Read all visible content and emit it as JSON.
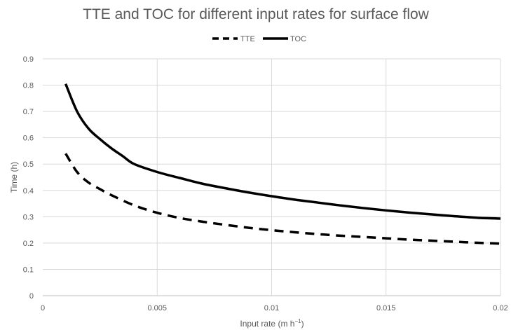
{
  "chart_data": {
    "type": "line",
    "title": "TTE and TOC for different input rates for surface flow",
    "xlabel": "Input rate (m h",
    "xlabel_sup": "−1",
    "xlabel_close": ")",
    "ylabel": "Time (h)",
    "xlim": [
      0,
      0.02
    ],
    "ylim": [
      0,
      0.9
    ],
    "x_ticks": [
      "0",
      "0.005",
      "0.01",
      "0.015",
      "0.02"
    ],
    "y_ticks": [
      "0",
      "0.1",
      "0.2",
      "0.3",
      "0.4",
      "0.5",
      "0.6",
      "0.7",
      "0.8",
      "0.9"
    ],
    "grid": true,
    "legend_position": "top",
    "series": [
      {
        "name": "TTE",
        "style": "dashed",
        "color": "#000000",
        "x": [
          0.001,
          0.0015,
          0.002,
          0.0025,
          0.003,
          0.004,
          0.005,
          0.006,
          0.007,
          0.008,
          0.009,
          0.01,
          0.011,
          0.012,
          0.013,
          0.014,
          0.015,
          0.016,
          0.017,
          0.018,
          0.019,
          0.02
        ],
        "values": [
          0.54,
          0.47,
          0.43,
          0.405,
          0.382,
          0.343,
          0.315,
          0.295,
          0.281,
          0.269,
          0.258,
          0.249,
          0.241,
          0.234,
          0.228,
          0.223,
          0.218,
          0.213,
          0.209,
          0.205,
          0.201,
          0.198
        ]
      },
      {
        "name": "TOC",
        "style": "solid",
        "color": "#000000",
        "x": [
          0.001,
          0.0015,
          0.002,
          0.0025,
          0.003,
          0.0035,
          0.004,
          0.005,
          0.006,
          0.007,
          0.008,
          0.009,
          0.01,
          0.011,
          0.012,
          0.013,
          0.014,
          0.015,
          0.016,
          0.017,
          0.018,
          0.019,
          0.02
        ],
        "values": [
          0.805,
          0.7,
          0.635,
          0.595,
          0.56,
          0.53,
          0.5,
          0.47,
          0.447,
          0.425,
          0.408,
          0.392,
          0.378,
          0.365,
          0.354,
          0.343,
          0.333,
          0.324,
          0.316,
          0.309,
          0.302,
          0.296,
          0.293
        ]
      }
    ]
  }
}
